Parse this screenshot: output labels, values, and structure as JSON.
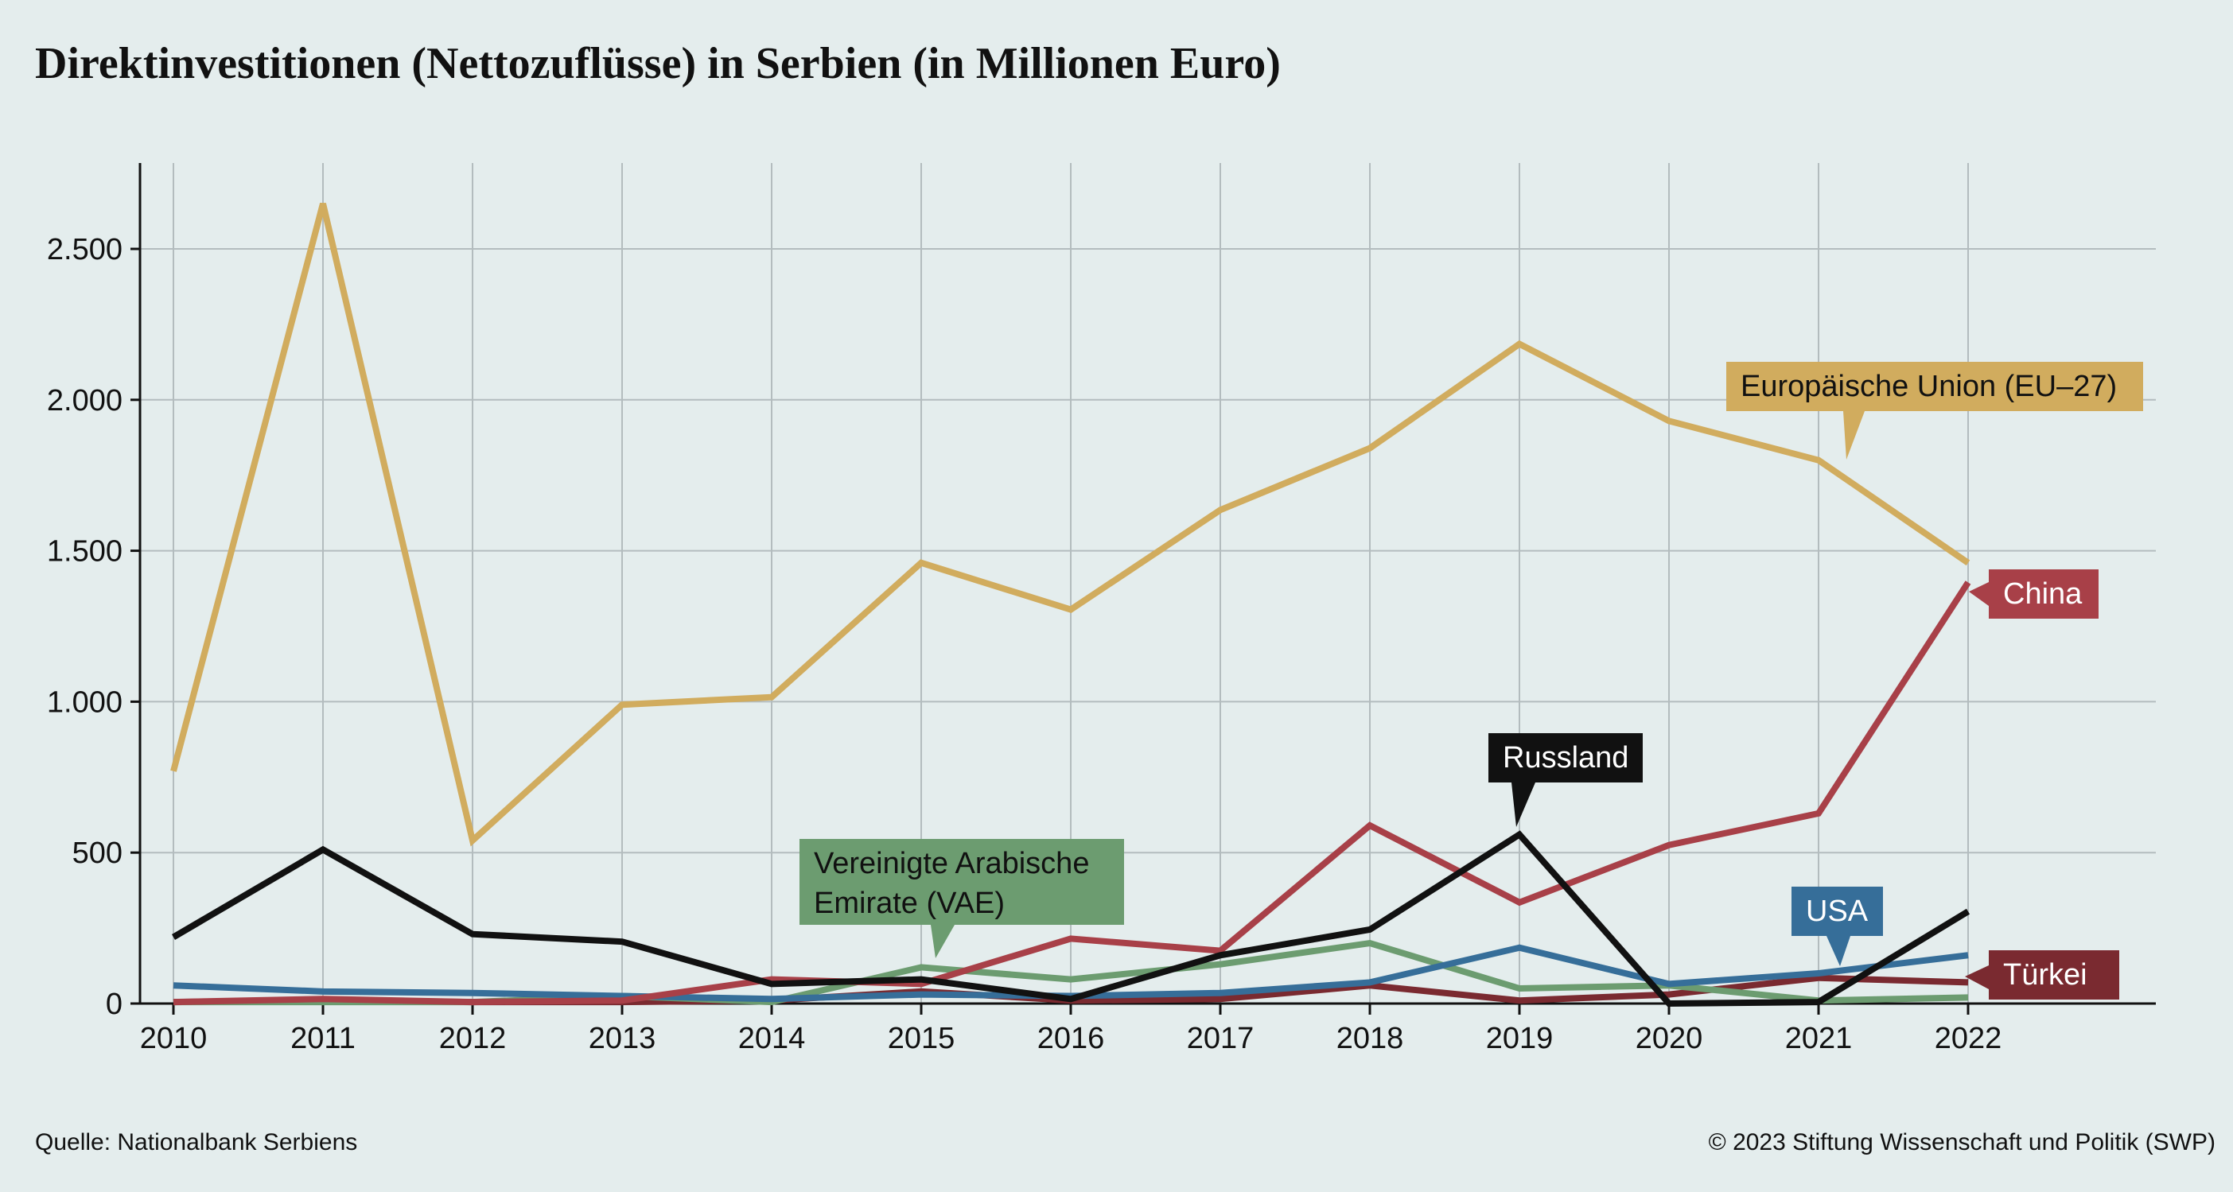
{
  "title": "Direktinvestitionen (Nettozuflüsse) in Serbien (in Millionen Euro)",
  "footer": {
    "source": "Quelle: Nationalbank Serbiens",
    "copyright": "© 2023 Stiftung Wissenschaft und Politik (SWP)"
  },
  "chart_data": {
    "type": "line",
    "x": [
      2010,
      2011,
      2012,
      2013,
      2014,
      2015,
      2016,
      2017,
      2018,
      2019,
      2020,
      2021,
      2022
    ],
    "xlim": [
      2010,
      2023.3
    ],
    "ylim": [
      0,
      2650
    ],
    "y_ticks": [
      0,
      500,
      1000,
      1500,
      2000,
      2500
    ],
    "y_tick_labels": [
      "0",
      "500",
      "1.000",
      "1.500",
      "2.000",
      "2.500"
    ],
    "grid": true,
    "series": [
      {
        "name": "Europäische Union (EU–27)",
        "color": "#d1ac5e",
        "values": [
          770,
          2650,
          540,
          990,
          1015,
          1460,
          1305,
          1635,
          1840,
          2185,
          1930,
          1800,
          1460
        ]
      },
      {
        "name": "China",
        "color": "#a84048",
        "values": [
          5,
          15,
          5,
          10,
          80,
          65,
          215,
          175,
          590,
          335,
          525,
          630,
          1395
        ]
      },
      {
        "name": "Russland",
        "color": "#111111",
        "values": [
          220,
          510,
          230,
          205,
          65,
          80,
          15,
          160,
          245,
          560,
          0,
          5,
          305
        ]
      },
      {
        "name": "Vereinigte Arabische Emirate (VAE)",
        "color": "#6c9c70",
        "values": [
          5,
          5,
          5,
          25,
          5,
          120,
          80,
          130,
          200,
          50,
          60,
          10,
          20
        ]
      },
      {
        "name": "USA",
        "color": "#366e99",
        "values": [
          60,
          40,
          35,
          25,
          15,
          30,
          25,
          35,
          70,
          185,
          65,
          100,
          160
        ]
      },
      {
        "name": "Türkei",
        "color": "#7a2a30",
        "values": [
          5,
          10,
          5,
          5,
          10,
          40,
          10,
          15,
          60,
          10,
          30,
          85,
          70
        ]
      }
    ]
  },
  "labels": [
    {
      "series": 0,
      "text": "Europäische Union (EU–27)"
    },
    {
      "series": 1,
      "text": "China"
    },
    {
      "series": 2,
      "text": "Russland"
    },
    {
      "series": 3,
      "lines": [
        "Vereinigte Arabische",
        "Emirate (VAE)"
      ]
    },
    {
      "series": 4,
      "text": "USA"
    },
    {
      "series": 5,
      "text": "Türkei"
    }
  ]
}
